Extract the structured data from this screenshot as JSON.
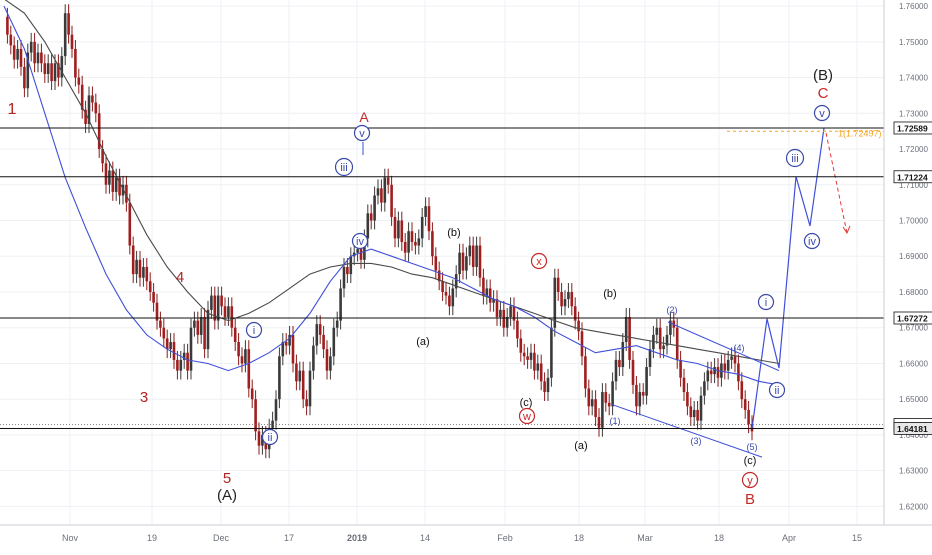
{
  "chart_data": {
    "type": "line",
    "title": "",
    "xlabel": "",
    "ylabel": "",
    "ylim": [
      1.6148,
      1.7617
    ],
    "y_ticks": [
      "1.76000",
      "1.75000",
      "1.74000",
      "1.73000",
      "1.72000",
      "1.71000",
      "1.70000",
      "1.69000",
      "1.68000",
      "1.67000",
      "1.66000",
      "1.65000",
      "1.64000",
      "1.63000",
      "1.62000"
    ],
    "x_ticks": [
      "Nov",
      "19",
      "Dec",
      "17",
      "2019",
      "14",
      "Feb",
      "18",
      "Mar",
      "18",
      "Apr",
      "15"
    ],
    "price_levels": [
      {
        "label": "1.72589",
        "value": 1.72589,
        "style": "solid"
      },
      {
        "label": "1.71224",
        "value": 1.71224,
        "style": "solid"
      },
      {
        "label": "1.67272",
        "value": 1.67272,
        "style": "solid"
      },
      {
        "label": "1.64293",
        "value": 1.64293,
        "style": "dotted"
      },
      {
        "label": "1.64181",
        "value": 1.64181,
        "style": "solid",
        "highlight": true
      }
    ],
    "fib_target": {
      "label": "1(1.72497)",
      "value": 1.72497
    },
    "wave_labels": [
      {
        "text": "1",
        "color": "#b22222",
        "style": "plain"
      },
      {
        "text": "3",
        "color": "#b22222",
        "style": "plain"
      },
      {
        "text": "4",
        "color": "#b22222",
        "style": "plain"
      },
      {
        "text": "5",
        "color": "#b22222",
        "style": "plain"
      },
      {
        "text": "(A)",
        "color": "#222222",
        "style": "plain"
      },
      {
        "text": "A",
        "color": "#c62828",
        "style": "plain"
      },
      {
        "text": "v",
        "color": "#3949ab",
        "style": "circle"
      },
      {
        "text": "iii",
        "color": "#3949ab",
        "style": "circle"
      },
      {
        "text": "iv",
        "color": "#3949ab",
        "style": "circle"
      },
      {
        "text": "i",
        "color": "#3949ab",
        "style": "circle"
      },
      {
        "text": "ii",
        "color": "#3949ab",
        "style": "circle"
      },
      {
        "text": "(b)",
        "color": "#111111",
        "style": "plain"
      },
      {
        "text": "(a)",
        "color": "#111111",
        "style": "plain"
      },
      {
        "text": "(c)",
        "color": "#111111",
        "style": "plain"
      },
      {
        "text": "w",
        "color": "#c62828",
        "style": "circle"
      },
      {
        "text": "x",
        "color": "#c62828",
        "style": "circle"
      },
      {
        "text": "(b)",
        "color": "#111111",
        "style": "plain"
      },
      {
        "text": "(a)",
        "color": "#111111",
        "style": "plain"
      },
      {
        "text": "(1)",
        "color": "#3949ab",
        "style": "plain"
      },
      {
        "text": "(2)",
        "color": "#3949ab",
        "style": "plain"
      },
      {
        "text": "(3)",
        "color": "#3949ab",
        "style": "plain"
      },
      {
        "text": "(4)",
        "color": "#3949ab",
        "style": "plain"
      },
      {
        "text": "(5)",
        "color": "#3949ab",
        "style": "plain"
      },
      {
        "text": "(c)",
        "color": "#111111",
        "style": "plain"
      },
      {
        "text": "y",
        "color": "#c62828",
        "style": "circle"
      },
      {
        "text": "B",
        "color": "#c62828",
        "style": "plain"
      },
      {
        "text": "i",
        "color": "#3949ab",
        "style": "circle"
      },
      {
        "text": "ii",
        "color": "#3949ab",
        "style": "circle"
      },
      {
        "text": "iii",
        "color": "#3949ab",
        "style": "circle"
      },
      {
        "text": "iv",
        "color": "#3949ab",
        "style": "circle"
      },
      {
        "text": "v",
        "color": "#3949ab",
        "style": "circle"
      },
      {
        "text": "(B)",
        "color": "#222222",
        "style": "plain"
      },
      {
        "text": "C",
        "color": "#c62828",
        "style": "plain"
      }
    ],
    "series": [
      {
        "values": [
          1.757,
          1.752,
          1.749,
          1.745,
          1.748,
          1.743,
          1.737,
          1.747,
          1.75,
          1.744,
          1.747,
          1.744,
          1.741,
          1.744,
          1.739,
          1.744,
          1.74,
          1.746,
          1.758,
          1.752,
          1.748,
          1.74,
          1.738,
          1.731,
          1.727,
          1.735,
          1.733,
          1.73,
          1.72,
          1.716,
          1.71,
          1.714,
          1.708,
          1.712,
          1.707,
          1.71,
          1.705,
          1.693,
          1.685,
          1.689,
          1.684,
          1.687,
          1.683,
          1.68,
          1.677,
          1.672,
          1.67,
          1.667,
          1.664,
          1.666,
          1.661,
          1.658,
          1.661,
          1.663,
          1.658,
          1.67,
          1.672,
          1.668,
          1.673,
          1.664,
          1.675,
          1.679,
          1.672,
          1.679,
          1.676,
          1.673,
          1.676,
          1.67,
          1.666,
          1.662,
          1.66,
          1.664,
          1.653,
          1.65,
          1.641,
          1.637,
          1.64,
          1.636,
          1.642,
          1.644,
          1.65,
          1.662,
          1.666,
          1.665,
          1.668,
          1.66,
          1.655,
          1.658,
          1.65,
          1.648,
          1.658,
          1.665,
          1.671,
          1.668,
          1.664,
          1.658,
          1.662,
          1.67,
          1.672,
          1.681,
          1.687,
          1.685,
          1.69,
          1.691,
          1.692,
          1.689,
          1.695,
          1.702,
          1.7,
          1.707,
          1.709,
          1.705,
          1.712,
          1.71,
          1.701,
          1.695,
          1.7,
          1.694,
          1.691,
          1.697,
          1.694,
          1.693,
          1.695,
          1.701,
          1.704,
          1.697,
          1.69,
          1.686,
          1.683,
          1.68,
          1.679,
          1.676,
          1.681,
          1.685,
          1.691,
          1.686,
          1.69,
          1.693,
          1.687,
          1.693,
          1.684,
          1.679,
          1.681,
          1.677,
          1.678,
          1.673,
          1.675,
          1.67,
          1.673,
          1.676,
          1.672,
          1.667,
          1.663,
          1.662,
          1.661,
          1.663,
          1.658,
          1.66,
          1.655,
          1.652,
          1.656,
          1.67,
          1.684,
          1.68,
          1.676,
          1.678,
          1.68,
          1.676,
          1.672,
          1.669,
          1.662,
          1.653,
          1.648,
          1.65,
          1.645,
          1.642,
          1.652,
          1.649,
          1.648,
          1.655,
          1.661,
          1.659,
          1.666,
          1.673,
          1.661,
          1.654,
          1.648,
          1.652,
          1.651,
          1.659,
          1.664,
          1.668,
          1.67,
          1.664,
          1.665,
          1.668,
          1.672,
          1.67,
          1.661,
          1.656,
          1.652,
          1.648,
          1.645,
          1.647,
          1.644,
          1.651,
          1.655,
          1.658,
          1.657,
          1.659,
          1.656,
          1.66,
          1.658,
          1.661,
          1.662,
          1.66,
          1.655,
          1.65,
          1.647,
          1.643,
          1.641
        ]
      },
      {
        "name": "",
        "values": [
          1.76,
          1.748,
          1.73,
          1.712,
          1.698,
          1.685,
          1.675,
          1.668,
          1.664,
          1.661,
          1.66,
          1.658,
          1.66,
          1.663,
          1.667,
          1.674,
          1.683,
          1.69,
          1.692,
          1.69,
          1.688,
          1.686,
          1.684,
          1.681,
          1.678,
          1.676,
          1.673,
          1.669,
          1.666,
          1.663,
          1.664,
          1.665,
          1.663,
          1.661,
          1.66,
          1.658,
          1.657,
          1.655,
          1.654
        ]
      },
      {
        "name": "",
        "values": [
          1.762,
          1.758,
          1.75,
          1.74,
          1.73,
          1.718,
          1.707,
          1.696,
          1.687,
          1.68,
          1.674,
          1.672,
          1.674,
          1.677,
          1.681,
          1.685,
          1.687,
          1.688,
          1.688,
          1.687,
          1.685,
          1.684,
          1.682,
          1.68,
          1.678,
          1.676,
          1.674,
          1.672,
          1.67,
          1.669,
          1.668,
          1.667,
          1.666,
          1.665,
          1.664,
          1.663,
          1.662,
          1.661,
          1.66
        ]
      }
    ],
    "projection": [
      1.6418,
      1.6725,
      1.6587,
      1.7123,
      1.6985,
      1.7259
    ]
  }
}
